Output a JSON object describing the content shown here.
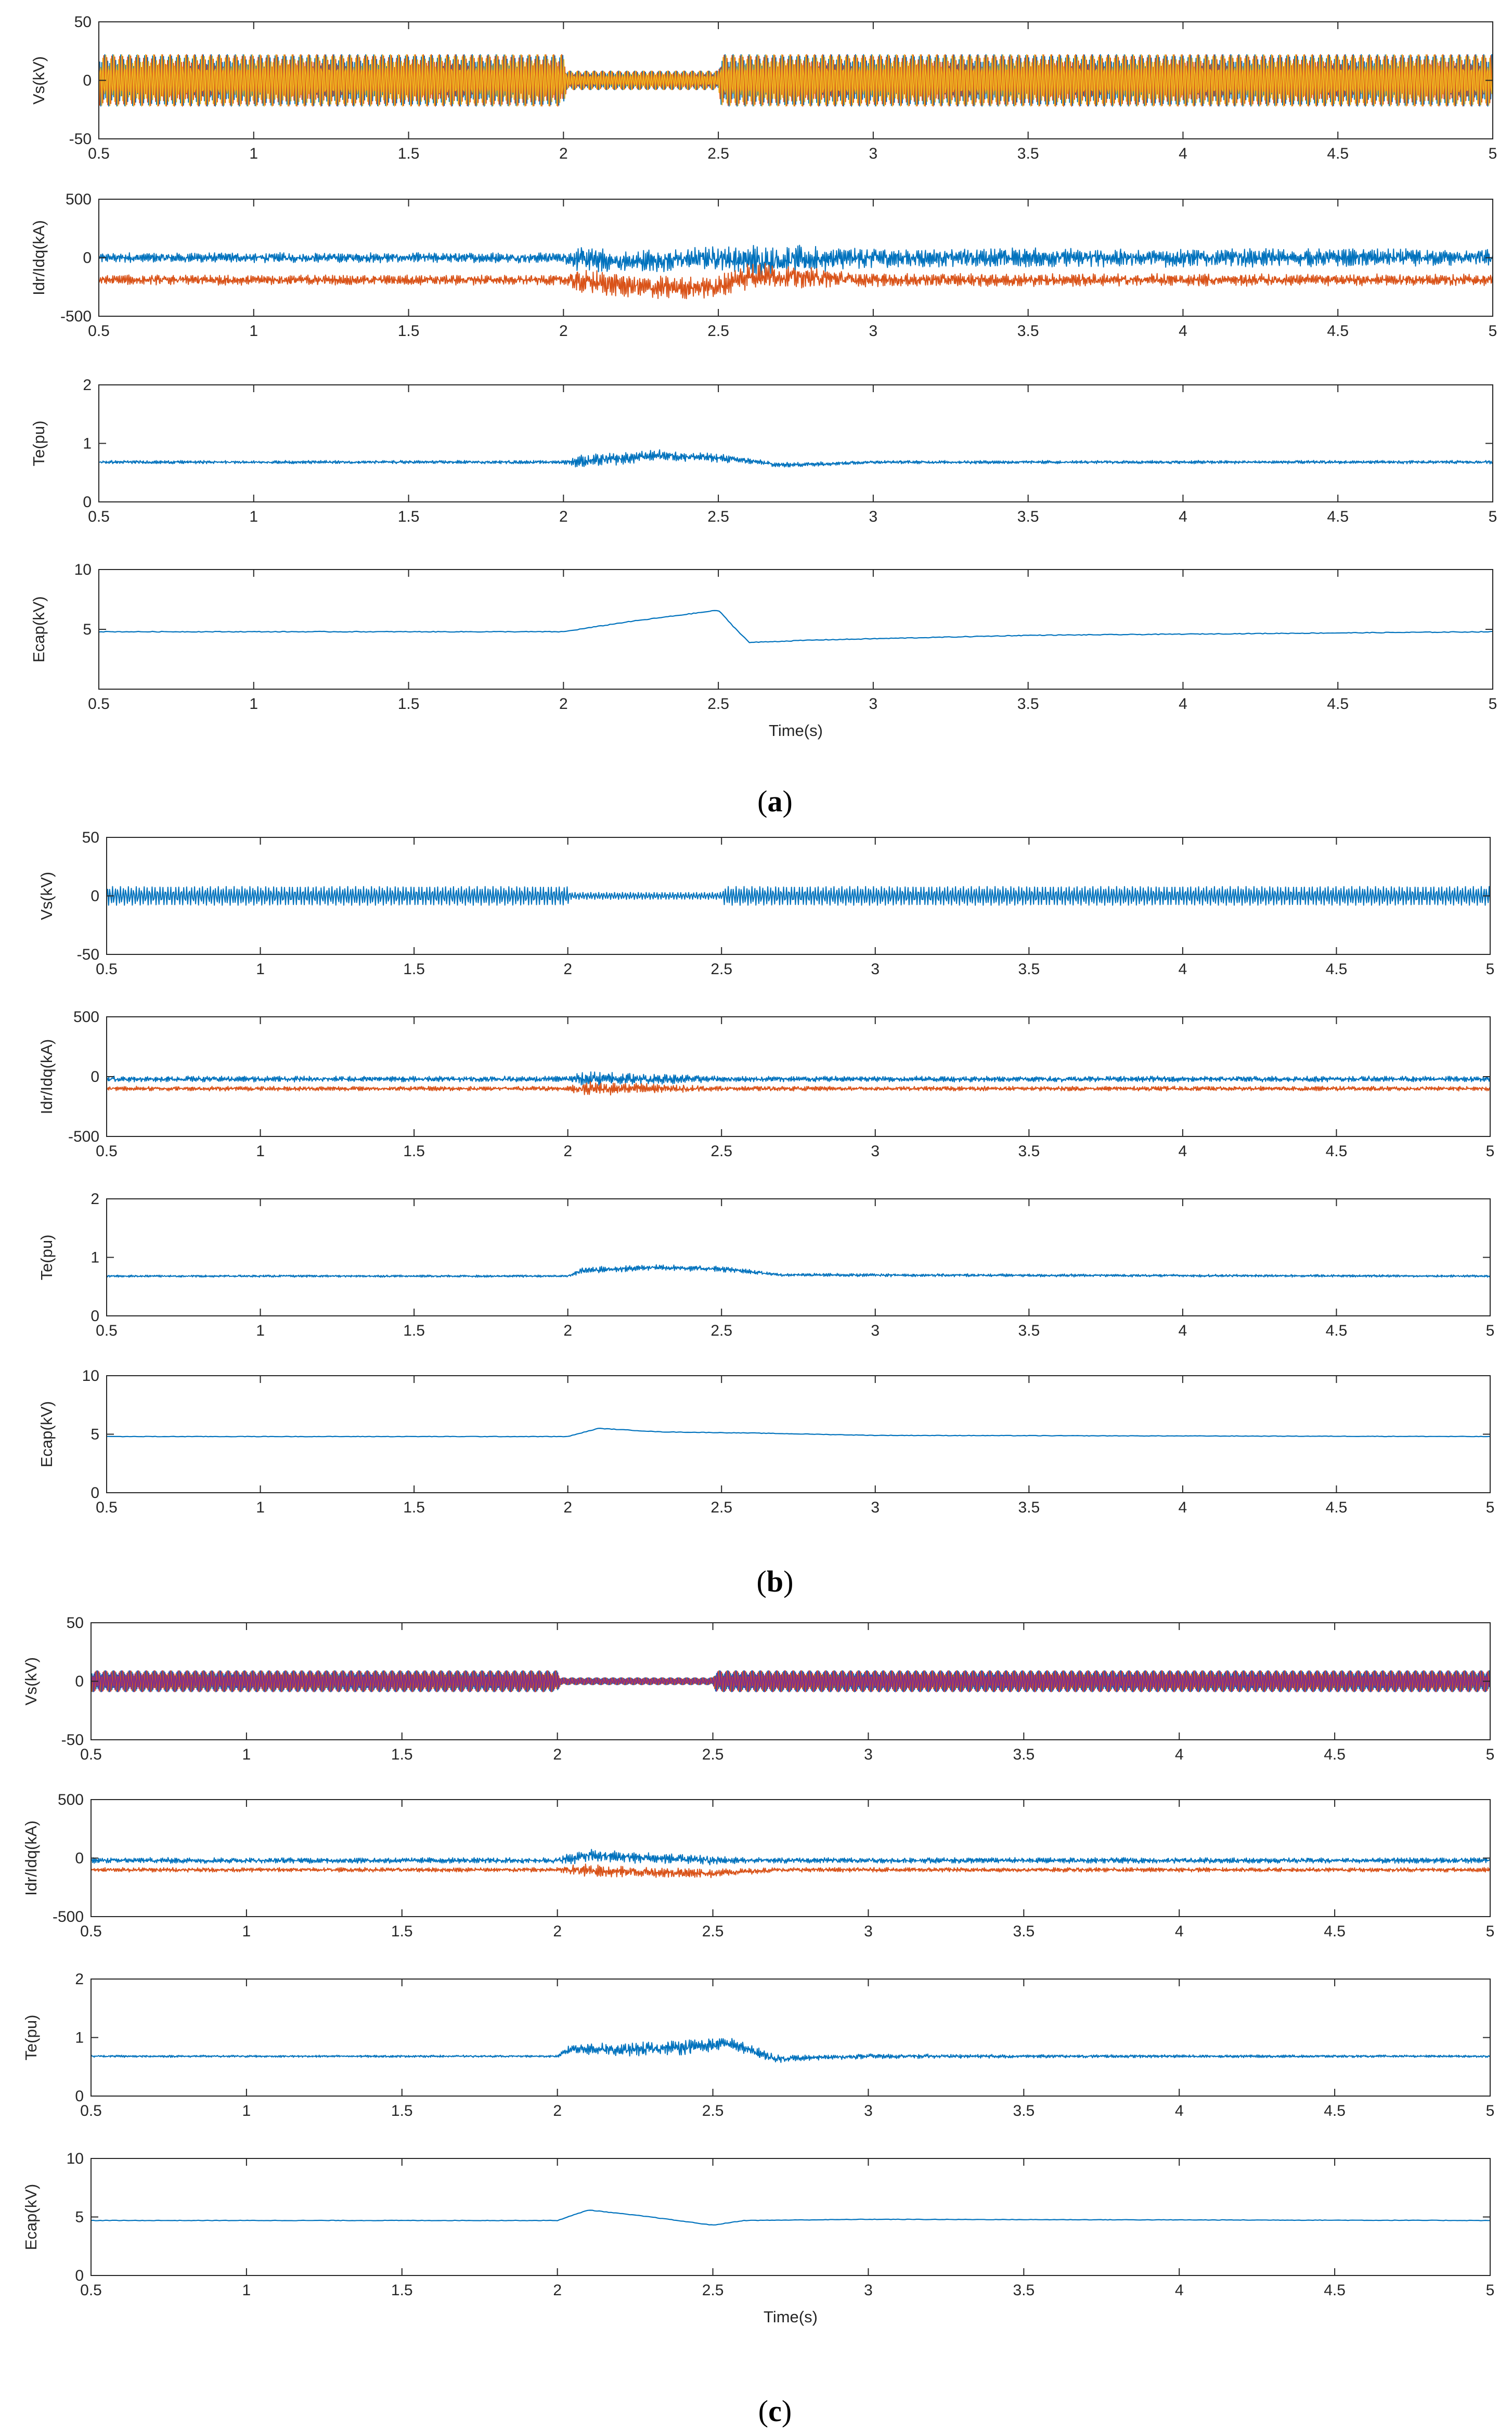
{
  "figure_labels": [
    "(a)",
    "(b)",
    "(c)"
  ],
  "chart_data": [
    {
      "type": "line",
      "panel": "a",
      "ylabel": "Vs(kV)",
      "ylim": [
        -50,
        50
      ],
      "yticks": [
        -50,
        0,
        50
      ],
      "xlim": [
        0.5,
        5
      ],
      "xticks": [
        0.5,
        1,
        1.5,
        2,
        2.5,
        3,
        3.5,
        4,
        4.5,
        5
      ],
      "xlabel": "",
      "series": [
        {
          "color": "#0072bd",
          "kind": "oscillation",
          "center": 0,
          "amplitude": [
            [
              0.5,
              22
            ],
            [
              2.0,
              22
            ],
            [
              2.01,
              8
            ],
            [
              2.5,
              8
            ],
            [
              2.51,
              22
            ],
            [
              5.0,
              22
            ]
          ]
        },
        {
          "color": "#d95319",
          "kind": "oscillation",
          "center": 0,
          "amplitude": [
            [
              0.5,
              22
            ],
            [
              2.0,
              22
            ],
            [
              2.01,
              8
            ],
            [
              2.5,
              8
            ],
            [
              2.51,
              22
            ],
            [
              5.0,
              22
            ]
          ]
        },
        {
          "color": "#edb120",
          "kind": "oscillation",
          "center": 0,
          "amplitude": [
            [
              0.5,
              22
            ],
            [
              2.0,
              22
            ],
            [
              2.01,
              8
            ],
            [
              2.5,
              8
            ],
            [
              2.51,
              22
            ],
            [
              5.0,
              22
            ]
          ]
        }
      ]
    },
    {
      "type": "line",
      "panel": "a",
      "ylabel": "Idr/Idq(kA)",
      "ylim": [
        -500,
        500
      ],
      "yticks": [
        -500,
        0,
        500
      ],
      "xlim": [
        0.5,
        5
      ],
      "xticks": [
        0.5,
        1,
        1.5,
        2,
        2.5,
        3,
        3.5,
        4,
        4.5,
        5
      ],
      "xlabel": "",
      "series": [
        {
          "color": "#0072bd",
          "kind": "noisy",
          "center": [
            [
              0.5,
              0
            ],
            [
              2.0,
              0
            ],
            [
              2.2,
              -40
            ],
            [
              2.5,
              0
            ],
            [
              2.6,
              -30
            ],
            [
              3.0,
              0
            ],
            [
              5.0,
              0
            ]
          ],
          "amplitude": [
            [
              0.5,
              45
            ],
            [
              2.0,
              45
            ],
            [
              2.05,
              110
            ],
            [
              2.5,
              100
            ],
            [
              2.6,
              150
            ],
            [
              3.0,
              90
            ],
            [
              5.0,
              75
            ]
          ]
        },
        {
          "color": "#d95319",
          "kind": "noisy",
          "center": [
            [
              0.5,
              -190
            ],
            [
              2.0,
              -190
            ],
            [
              2.3,
              -260
            ],
            [
              2.5,
              -250
            ],
            [
              2.6,
              -150
            ],
            [
              3.0,
              -190
            ],
            [
              5.0,
              -190
            ]
          ],
          "amplitude": [
            [
              0.5,
              45
            ],
            [
              2.0,
              45
            ],
            [
              2.05,
              110
            ],
            [
              2.5,
              100
            ],
            [
              2.6,
              120
            ],
            [
              3.0,
              60
            ],
            [
              5.0,
              50
            ]
          ]
        }
      ]
    },
    {
      "type": "line",
      "panel": "a",
      "ylabel": "Te(pu)",
      "ylim": [
        0,
        2
      ],
      "yticks": [
        0,
        1,
        2
      ],
      "xlim": [
        0.5,
        5
      ],
      "xticks": [
        0.5,
        1,
        1.5,
        2,
        2.5,
        3,
        3.5,
        4,
        4.5,
        5
      ],
      "xlabel": "",
      "series": [
        {
          "color": "#0072bd",
          "kind": "noisy",
          "center": [
            [
              0.5,
              0.68
            ],
            [
              2.0,
              0.68
            ],
            [
              2.2,
              0.74
            ],
            [
              2.3,
              0.8
            ],
            [
              2.5,
              0.75
            ],
            [
              2.6,
              0.7
            ],
            [
              2.7,
              0.63
            ],
            [
              3.0,
              0.68
            ],
            [
              5.0,
              0.68
            ]
          ],
          "amplitude": [
            [
              0.5,
              0.03
            ],
            [
              2.0,
              0.03
            ],
            [
              2.05,
              0.12
            ],
            [
              2.5,
              0.08
            ],
            [
              2.6,
              0.05
            ],
            [
              3.0,
              0.03
            ],
            [
              5.0,
              0.03
            ]
          ]
        }
      ]
    },
    {
      "type": "line",
      "panel": "a",
      "ylabel": "Ecap(kV)",
      "ylim": [
        0,
        10
      ],
      "yticks": [
        5,
        10
      ],
      "xlim": [
        0.5,
        5
      ],
      "xticks": [
        0.5,
        1,
        1.5,
        2,
        2.5,
        3,
        3.5,
        4,
        4.5,
        5
      ],
      "xlabel": "Time(s)",
      "series": [
        {
          "color": "#0072bd",
          "kind": "smooth",
          "center": [
            [
              0.5,
              4.8
            ],
            [
              2.0,
              4.8
            ],
            [
              2.2,
              5.6
            ],
            [
              2.5,
              6.6
            ],
            [
              2.55,
              5.2
            ],
            [
              2.6,
              3.9
            ],
            [
              2.8,
              4.1
            ],
            [
              3.5,
              4.5
            ],
            [
              5.0,
              4.8
            ]
          ],
          "amplitude": 0.03
        }
      ]
    },
    {
      "type": "line",
      "panel": "b",
      "ylabel": "Vs(kV)",
      "ylim": [
        -50,
        50
      ],
      "yticks": [
        -50,
        0,
        50
      ],
      "xlim": [
        0.5,
        5
      ],
      "xticks": [
        0.5,
        1,
        1.5,
        2,
        2.5,
        3,
        3.5,
        4,
        4.5,
        5
      ],
      "xlabel": "",
      "series": [
        {
          "color": "#0072bd",
          "kind": "oscillation",
          "center": 0,
          "amplitude": [
            [
              0.5,
              8
            ],
            [
              2.0,
              8
            ],
            [
              2.01,
              3
            ],
            [
              2.5,
              3
            ],
            [
              2.51,
              8
            ],
            [
              5.0,
              8
            ]
          ]
        }
      ]
    },
    {
      "type": "line",
      "panel": "b",
      "ylabel": "Idr/Idq(kA)",
      "ylim": [
        -500,
        500
      ],
      "yticks": [
        -500,
        0,
        500
      ],
      "xlim": [
        0.5,
        5
      ],
      "xticks": [
        0.5,
        1,
        1.5,
        2,
        2.5,
        3,
        3.5,
        4,
        4.5,
        5
      ],
      "xlabel": "",
      "series": [
        {
          "color": "#0072bd",
          "kind": "noisy",
          "center": [
            [
              0.5,
              -20
            ],
            [
              5.0,
              -20
            ]
          ],
          "amplitude": [
            [
              0.5,
              25
            ],
            [
              2.0,
              25
            ],
            [
              2.05,
              70
            ],
            [
              2.3,
              45
            ],
            [
              2.5,
              25
            ],
            [
              5.0,
              25
            ]
          ]
        },
        {
          "color": "#d95319",
          "kind": "noisy",
          "center": [
            [
              0.5,
              -100
            ],
            [
              5.0,
              -100
            ]
          ],
          "amplitude": [
            [
              0.5,
              20
            ],
            [
              2.0,
              20
            ],
            [
              2.05,
              65
            ],
            [
              2.3,
              40
            ],
            [
              2.5,
              20
            ],
            [
              5.0,
              20
            ]
          ]
        }
      ]
    },
    {
      "type": "line",
      "panel": "b",
      "ylabel": "Te(pu)",
      "ylim": [
        0,
        2
      ],
      "yticks": [
        0,
        1,
        2
      ],
      "xlim": [
        0.5,
        5
      ],
      "xticks": [
        0.5,
        1,
        1.5,
        2,
        2.5,
        3,
        3.5,
        4,
        4.5,
        5
      ],
      "xlabel": "",
      "series": [
        {
          "color": "#0072bd",
          "kind": "noisy",
          "center": [
            [
              0.5,
              0.68
            ],
            [
              2.0,
              0.68
            ],
            [
              2.05,
              0.78
            ],
            [
              2.3,
              0.83
            ],
            [
              2.5,
              0.8
            ],
            [
              2.7,
              0.7
            ],
            [
              5.0,
              0.68
            ]
          ],
          "amplitude": [
            [
              0.5,
              0.02
            ],
            [
              2.0,
              0.02
            ],
            [
              2.05,
              0.06
            ],
            [
              2.5,
              0.05
            ],
            [
              2.7,
              0.03
            ],
            [
              5.0,
              0.02
            ]
          ]
        }
      ]
    },
    {
      "type": "line",
      "panel": "b",
      "ylabel": "Ecap(kV)",
      "ylim": [
        0,
        10
      ],
      "yticks": [
        0,
        5,
        10
      ],
      "xlim": [
        0.5,
        5
      ],
      "xticks": [
        0.5,
        1,
        1.5,
        2,
        2.5,
        3,
        3.5,
        4,
        4.5,
        5
      ],
      "xlabel": "",
      "series": [
        {
          "color": "#0072bd",
          "kind": "smooth",
          "center": [
            [
              0.5,
              4.8
            ],
            [
              2.0,
              4.8
            ],
            [
              2.1,
              5.5
            ],
            [
              2.3,
              5.2
            ],
            [
              2.6,
              5.1
            ],
            [
              3.0,
              4.9
            ],
            [
              5.0,
              4.8
            ]
          ],
          "amplitude": 0.02
        }
      ]
    },
    {
      "type": "line",
      "panel": "c",
      "ylabel": "Vs(kV)",
      "ylim": [
        -50,
        50
      ],
      "yticks": [
        -50,
        0,
        50
      ],
      "xlim": [
        0.5,
        5
      ],
      "xticks": [
        0.5,
        1,
        1.5,
        2,
        2.5,
        3,
        3.5,
        4,
        4.5,
        5
      ],
      "xlabel": "",
      "series": [
        {
          "color": "#0072bd",
          "kind": "oscillation",
          "center": 0,
          "amplitude": [
            [
              0.5,
              9
            ],
            [
              2.0,
              9
            ],
            [
              2.01,
              3
            ],
            [
              2.5,
              3
            ],
            [
              2.51,
              9
            ],
            [
              5.0,
              9
            ]
          ]
        },
        {
          "color": "#d95319",
          "kind": "oscillation",
          "center": 0,
          "amplitude": [
            [
              0.5,
              9
            ],
            [
              2.0,
              9
            ],
            [
              2.01,
              3
            ],
            [
              2.5,
              3
            ],
            [
              2.51,
              9
            ],
            [
              5.0,
              9
            ]
          ]
        },
        {
          "color": "#7e2f8e",
          "kind": "oscillation",
          "center": 0,
          "amplitude": [
            [
              0.5,
              9
            ],
            [
              2.0,
              9
            ],
            [
              2.01,
              3
            ],
            [
              2.5,
              3
            ],
            [
              2.51,
              9
            ],
            [
              5.0,
              9
            ]
          ]
        }
      ]
    },
    {
      "type": "line",
      "panel": "c",
      "ylabel": "Idr/Idq(kA)",
      "ylim": [
        -500,
        500
      ],
      "yticks": [
        -500,
        0,
        500
      ],
      "xlim": [
        0.5,
        5
      ],
      "xticks": [
        0.5,
        1,
        1.5,
        2,
        2.5,
        3,
        3.5,
        4,
        4.5,
        5
      ],
      "xlabel": "",
      "series": [
        {
          "color": "#0072bd",
          "kind": "noisy",
          "center": [
            [
              0.5,
              -20
            ],
            [
              2.0,
              -20
            ],
            [
              2.1,
              20
            ],
            [
              2.5,
              -20
            ],
            [
              5.0,
              -20
            ]
          ],
          "amplitude": [
            [
              0.5,
              25
            ],
            [
              2.0,
              25
            ],
            [
              2.05,
              60
            ],
            [
              2.5,
              40
            ],
            [
              2.6,
              25
            ],
            [
              5.0,
              25
            ]
          ]
        },
        {
          "color": "#d95319",
          "kind": "noisy",
          "center": [
            [
              0.5,
              -100
            ],
            [
              2.0,
              -100
            ],
            [
              2.3,
              -120
            ],
            [
              2.5,
              -130
            ],
            [
              2.7,
              -100
            ],
            [
              5.0,
              -100
            ]
          ],
          "amplitude": [
            [
              0.5,
              20
            ],
            [
              2.0,
              20
            ],
            [
              2.05,
              60
            ],
            [
              2.5,
              40
            ],
            [
              2.7,
              20
            ],
            [
              5.0,
              20
            ]
          ]
        }
      ]
    },
    {
      "type": "line",
      "panel": "c",
      "ylabel": "Te(pu)",
      "ylim": [
        0,
        2
      ],
      "yticks": [
        0,
        1,
        2
      ],
      "xlim": [
        0.5,
        5
      ],
      "xticks": [
        0.5,
        1,
        1.5,
        2,
        2.5,
        3,
        3.5,
        4,
        4.5,
        5
      ],
      "xlabel": "",
      "series": [
        {
          "color": "#0072bd",
          "kind": "noisy",
          "center": [
            [
              0.5,
              0.68
            ],
            [
              2.0,
              0.68
            ],
            [
              2.05,
              0.82
            ],
            [
              2.2,
              0.78
            ],
            [
              2.45,
              0.85
            ],
            [
              2.55,
              0.9
            ],
            [
              2.7,
              0.64
            ],
            [
              3.0,
              0.68
            ],
            [
              5.0,
              0.68
            ]
          ],
          "amplitude": [
            [
              0.5,
              0.02
            ],
            [
              2.0,
              0.02
            ],
            [
              2.05,
              0.1
            ],
            [
              2.4,
              0.14
            ],
            [
              2.55,
              0.12
            ],
            [
              2.8,
              0.05
            ],
            [
              3.5,
              0.03
            ],
            [
              5.0,
              0.02
            ]
          ]
        }
      ]
    },
    {
      "type": "line",
      "panel": "c",
      "ylabel": "Ecap(kV)",
      "ylim": [
        0,
        10
      ],
      "yticks": [
        0,
        5,
        10
      ],
      "xlim": [
        0.5,
        5
      ],
      "xticks": [
        0.5,
        1,
        1.5,
        2,
        2.5,
        3,
        3.5,
        4,
        4.5,
        5
      ],
      "xlabel": "Time(s)",
      "series": [
        {
          "color": "#0072bd",
          "kind": "smooth",
          "center": [
            [
              0.5,
              4.7
            ],
            [
              2.0,
              4.7
            ],
            [
              2.1,
              5.6
            ],
            [
              2.3,
              5.0
            ],
            [
              2.5,
              4.3
            ],
            [
              2.6,
              4.7
            ],
            [
              3.0,
              4.8
            ],
            [
              5.0,
              4.7
            ]
          ],
          "amplitude": 0.02
        }
      ]
    }
  ]
}
